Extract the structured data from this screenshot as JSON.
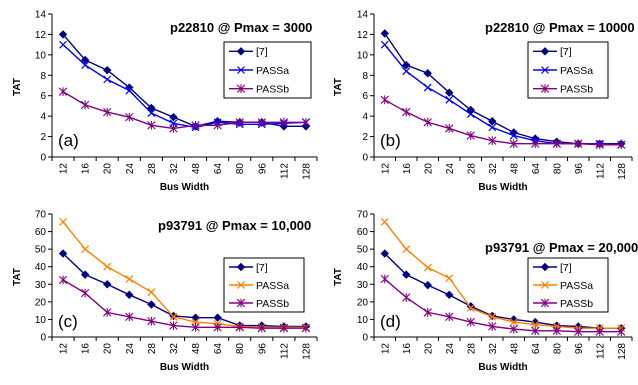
{
  "chart_data": [
    {
      "type": "line",
      "panel_label": "(a)",
      "title": "p22810 @ Pmax = 3000",
      "xlabel": "Bus Width",
      "ylabel": "TAT",
      "categories": [
        "12",
        "16",
        "20",
        "24",
        "28",
        "32",
        "48",
        "64",
        "80",
        "96",
        "112",
        "128"
      ],
      "ylim": [
        0,
        14
      ],
      "yticks": [
        0,
        2,
        4,
        6,
        8,
        10,
        12,
        14
      ],
      "grid": false,
      "legend_position": "right",
      "series": [
        {
          "name": "[7]",
          "color": "#000080",
          "marker": "diamond",
          "values": [
            12,
            9.5,
            8.5,
            6.8,
            4.8,
            3.9,
            3.0,
            3.5,
            3.4,
            3.4,
            3.0,
            3.0
          ]
        },
        {
          "name": "PASSa",
          "color": "#0000ff",
          "marker": "x",
          "values": [
            11,
            9.0,
            7.6,
            6.5,
            4.3,
            3.3,
            2.9,
            3.4,
            3.2,
            3.2,
            3.3,
            3.4
          ]
        },
        {
          "name": "PASSb",
          "color": "#800080",
          "marker": "star",
          "values": [
            6.4,
            5.1,
            4.4,
            3.9,
            3.1,
            2.8,
            3.1,
            3.1,
            3.4,
            3.4,
            3.4,
            3.4
          ]
        }
      ]
    },
    {
      "type": "line",
      "panel_label": "(b)",
      "title": "p22810 @ Pmax = 10000",
      "xlabel": "Bus Width",
      "ylabel": "TAT",
      "categories": [
        "12",
        "16",
        "20",
        "24",
        "28",
        "32",
        "48",
        "64",
        "80",
        "96",
        "112",
        "128"
      ],
      "ylim": [
        0,
        14
      ],
      "yticks": [
        0,
        2,
        4,
        6,
        8,
        10,
        12,
        14
      ],
      "grid": false,
      "legend_position": "right",
      "series": [
        {
          "name": "[7]",
          "color": "#000080",
          "marker": "diamond",
          "values": [
            12.1,
            9.0,
            8.2,
            6.3,
            4.6,
            3.5,
            2.4,
            1.8,
            1.5,
            1.3,
            1.3,
            1.3
          ]
        },
        {
          "name": "PASSa",
          "color": "#0000ff",
          "marker": "x",
          "values": [
            11.0,
            8.4,
            6.8,
            5.6,
            4.2,
            2.9,
            2.1,
            1.6,
            1.3,
            1.3,
            1.3,
            1.2
          ]
        },
        {
          "name": "PASSb",
          "color": "#800080",
          "marker": "star",
          "values": [
            5.6,
            4.4,
            3.4,
            2.8,
            2.1,
            1.6,
            1.3,
            1.3,
            1.3,
            1.3,
            1.2,
            1.2
          ]
        }
      ]
    },
    {
      "type": "line",
      "panel_label": "(c)",
      "title": "p93791 @ Pmax = 10,000",
      "xlabel": "Bus Width",
      "ylabel": "TAT",
      "categories": [
        "12",
        "16",
        "20",
        "24",
        "28",
        "32",
        "48",
        "64",
        "80",
        "96",
        "112",
        "128"
      ],
      "ylim": [
        0,
        70
      ],
      "yticks": [
        0,
        10,
        20,
        30,
        40,
        50,
        60,
        70
      ],
      "grid": false,
      "legend_position": "right",
      "series": [
        {
          "name": "[7]",
          "color": "#000080",
          "marker": "diamond",
          "values": [
            47.5,
            35.5,
            30,
            24,
            18.5,
            12,
            11,
            11,
            6.5,
            6.5,
            6,
            6
          ]
        },
        {
          "name": "PASSa",
          "color": "#ff8000",
          "marker": "x",
          "values": [
            65.5,
            50,
            40,
            33,
            25.5,
            11.5,
            8.5,
            7.5,
            6,
            5.5,
            5.5,
            5.5
          ]
        },
        {
          "name": "PASSb",
          "color": "#800080",
          "marker": "star",
          "values": [
            32.5,
            25,
            14,
            11.5,
            9,
            6.5,
            5.5,
            5.5,
            5.5,
            5,
            5,
            5
          ]
        }
      ]
    },
    {
      "type": "line",
      "panel_label": "(d)",
      "title": "p93791 @ Pmax = 20,000",
      "xlabel": "Bus Width",
      "ylabel": "TAT",
      "categories": [
        "12",
        "16",
        "20",
        "24",
        "28",
        "32",
        "48",
        "64",
        "80",
        "96",
        "112",
        "128"
      ],
      "ylim": [
        0,
        70
      ],
      "yticks": [
        0,
        10,
        20,
        30,
        40,
        50,
        60,
        70
      ],
      "grid": false,
      "legend_position": "right",
      "series": [
        {
          "name": "[7]",
          "color": "#000080",
          "marker": "diamond",
          "values": [
            47.5,
            35.5,
            29.5,
            24,
            17.5,
            12,
            10,
            8.5,
            6.5,
            6,
            5,
            5
          ]
        },
        {
          "name": "PASSa",
          "color": "#ff8000",
          "marker": "x",
          "values": [
            65.5,
            50,
            39.5,
            33.5,
            16.5,
            11.5,
            8.5,
            7,
            6,
            5,
            5,
            5
          ]
        },
        {
          "name": "PASSb",
          "color": "#800080",
          "marker": "star",
          "values": [
            33,
            22.5,
            14,
            11.5,
            8.5,
            6,
            4.5,
            3.5,
            3.5,
            3,
            3,
            3
          ]
        }
      ]
    }
  ]
}
